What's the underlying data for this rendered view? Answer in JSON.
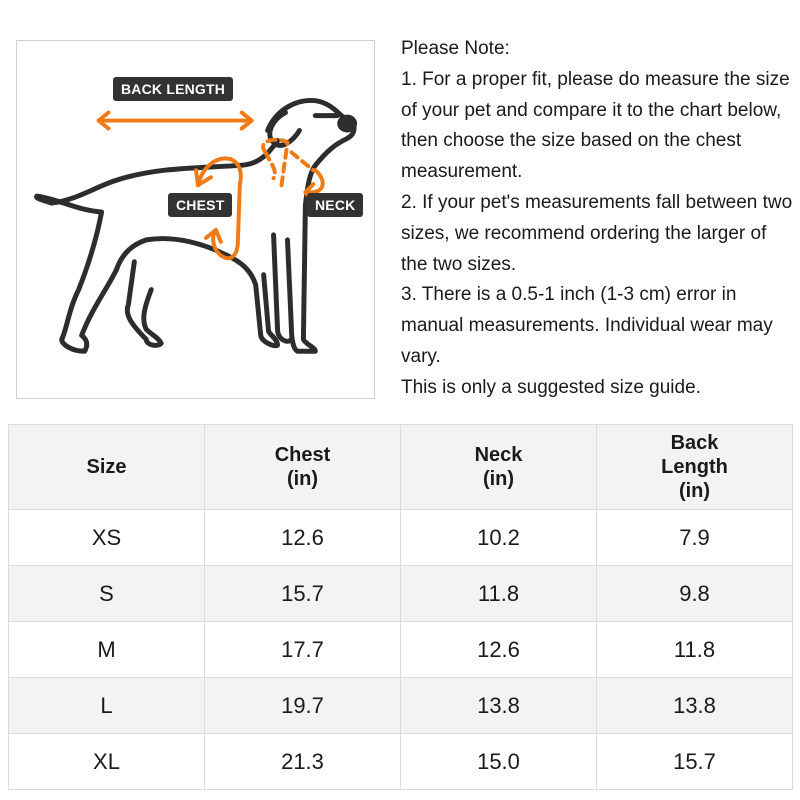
{
  "figure": {
    "labels": {
      "back_length": "BACK LENGTH",
      "chest": "CHEST",
      "neck": "NECK"
    },
    "colors": {
      "accent": "#f07b16",
      "outline": "#2d2d2d",
      "tag_bg": "#333333"
    }
  },
  "notes": {
    "heading": "Please Note:",
    "items": [
      "1. For a proper fit, please do measure the size of your pet and compare it to the chart below, then choose the size based on the chest measurement.",
      "2. If your pet's measurements fall between two sizes, we recommend ordering the larger of the two sizes.",
      "3. There is a 0.5-1 inch (1-3 cm) error in manual measurements. Individual wear may vary."
    ],
    "footer": "This is only a suggested size guide."
  },
  "table": {
    "headers": [
      {
        "line1": "Size",
        "line2": "",
        "line3": ""
      },
      {
        "line1": "Chest",
        "line2": "(in)",
        "line3": ""
      },
      {
        "line1": "Neck",
        "line2": "(in)",
        "line3": ""
      },
      {
        "line1": "Back",
        "line2": "Length",
        "line3": "(in)"
      }
    ],
    "rows": [
      [
        "XS",
        "12.6",
        "10.2",
        "7.9"
      ],
      [
        "S",
        "15.7",
        "11.8",
        "9.8"
      ],
      [
        "M",
        "17.7",
        "12.6",
        "11.8"
      ],
      [
        "L",
        "19.7",
        "13.8",
        "13.8"
      ],
      [
        "XL",
        "21.3",
        "15.0",
        "15.7"
      ]
    ]
  }
}
